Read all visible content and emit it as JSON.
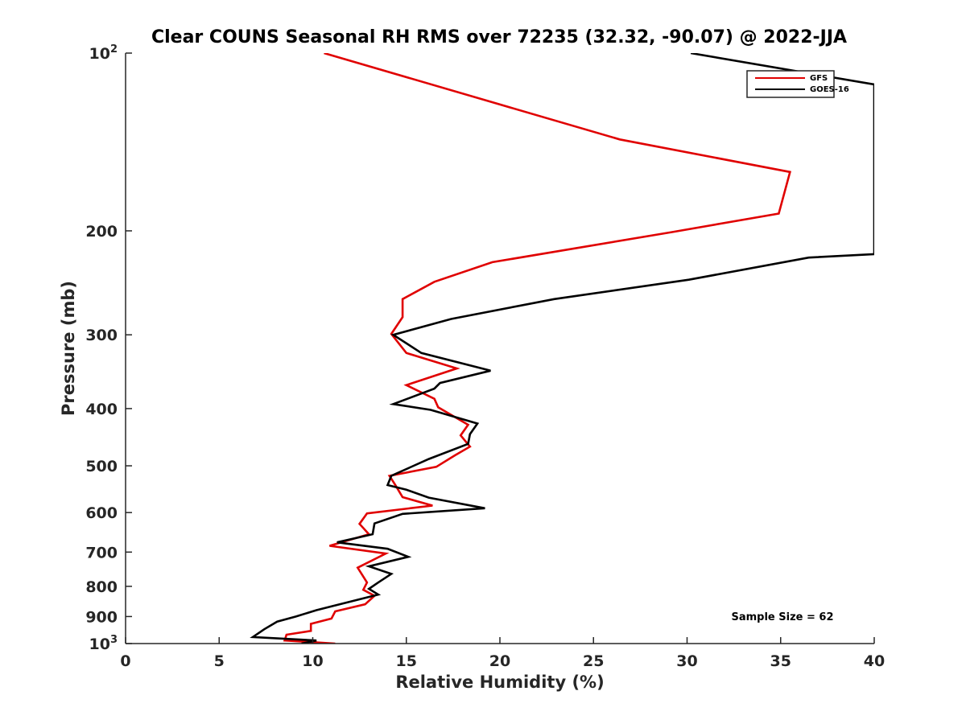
{
  "chart_data": {
    "type": "line",
    "title": "Clear COUNS Seasonal RH RMS over 72235 (32.32, -90.07) @ 2022-JJA",
    "xlabel": "Relative Humidity (%)",
    "ylabel": "Pressure (mb)",
    "xlim": [
      0,
      40
    ],
    "ylim": [
      100,
      1000
    ],
    "yscale": "log",
    "y_reversed": true,
    "grid": false,
    "legend_position": "top-right",
    "x_ticks": [
      0,
      5,
      10,
      15,
      20,
      25,
      30,
      35,
      40
    ],
    "x_tick_labels": [
      "0",
      "5",
      "10",
      "15",
      "20",
      "25",
      "30",
      "35",
      "40"
    ],
    "y_ticks": [
      {
        "value": 100,
        "base": "10",
        "exp": "2"
      },
      {
        "value": 200,
        "label": "200"
      },
      {
        "value": 300,
        "label": "300"
      },
      {
        "value": 400,
        "label": "400"
      },
      {
        "value": 500,
        "label": "500"
      },
      {
        "value": 600,
        "label": "600"
      },
      {
        "value": 700,
        "label": "700"
      },
      {
        "value": 800,
        "label": "800"
      },
      {
        "value": 900,
        "label": "900"
      },
      {
        "value": 1000,
        "base": "10",
        "exp": "3"
      }
    ],
    "annotation": "Sample Size = 62",
    "series": [
      {
        "name": "GFS",
        "color": "#e00000",
        "points": [
          [
            10.6,
            100
          ],
          [
            26.4,
            140
          ],
          [
            35.5,
            159
          ],
          [
            34.9,
            187
          ],
          [
            29.2,
            201
          ],
          [
            19.6,
            226
          ],
          [
            16.5,
            244
          ],
          [
            14.8,
            261
          ],
          [
            14.8,
            280
          ],
          [
            14.2,
            299
          ],
          [
            15.0,
            322
          ],
          [
            17.7,
            342
          ],
          [
            15.0,
            365
          ],
          [
            16.5,
            385
          ],
          [
            16.7,
            398
          ],
          [
            18.3,
            426
          ],
          [
            17.9,
            444
          ],
          [
            18.4,
            464
          ],
          [
            17.6,
            480
          ],
          [
            16.6,
            502
          ],
          [
            14.1,
            520
          ],
          [
            14.4,
            538
          ],
          [
            14.8,
            565
          ],
          [
            16.4,
            584
          ],
          [
            12.9,
            602
          ],
          [
            12.5,
            627
          ],
          [
            13.0,
            653
          ],
          [
            10.9,
            683
          ],
          [
            13.9,
            704
          ],
          [
            12.4,
            744
          ],
          [
            12.9,
            788
          ],
          [
            12.7,
            811
          ],
          [
            13.3,
            830
          ],
          [
            12.8,
            858
          ],
          [
            11.2,
            882
          ],
          [
            11.0,
            907
          ],
          [
            9.9,
            926
          ],
          [
            9.9,
            952
          ],
          [
            8.6,
            966
          ],
          [
            8.5,
            988
          ],
          [
            11.2,
            1000
          ]
        ]
      },
      {
        "name": "GOES-16",
        "color": "#000000",
        "points": [
          [
            30.2,
            100
          ],
          [
            40.0,
            113
          ],
          [
            40.0,
            219
          ],
          [
            36.5,
            222
          ],
          [
            30.1,
            242
          ],
          [
            22.9,
            261
          ],
          [
            17.4,
            282
          ],
          [
            14.3,
            300
          ],
          [
            15.8,
            322
          ],
          [
            19.5,
            345
          ],
          [
            16.8,
            362
          ],
          [
            16.5,
            370
          ],
          [
            14.3,
            393
          ],
          [
            16.3,
            402
          ],
          [
            18.8,
            424
          ],
          [
            18.4,
            442
          ],
          [
            18.3,
            459
          ],
          [
            16.2,
            487
          ],
          [
            15.2,
            503
          ],
          [
            14.2,
            520
          ],
          [
            14.0,
            539
          ],
          [
            15.0,
            549
          ],
          [
            16.2,
            566
          ],
          [
            19.2,
            590
          ],
          [
            14.8,
            603
          ],
          [
            13.3,
            626
          ],
          [
            13.2,
            653
          ],
          [
            11.3,
            674
          ],
          [
            14.0,
            691
          ],
          [
            15.1,
            713
          ],
          [
            13.0,
            740
          ],
          [
            14.2,
            762
          ],
          [
            13.5,
            788
          ],
          [
            13.0,
            808
          ],
          [
            13.5,
            826
          ],
          [
            11.0,
            865
          ],
          [
            10.2,
            878
          ],
          [
            9.1,
            900
          ],
          [
            8.1,
            918
          ],
          [
            7.4,
            946
          ],
          [
            6.8,
            975
          ],
          [
            10.2,
            988
          ],
          [
            9.4,
            1000
          ]
        ]
      }
    ]
  }
}
